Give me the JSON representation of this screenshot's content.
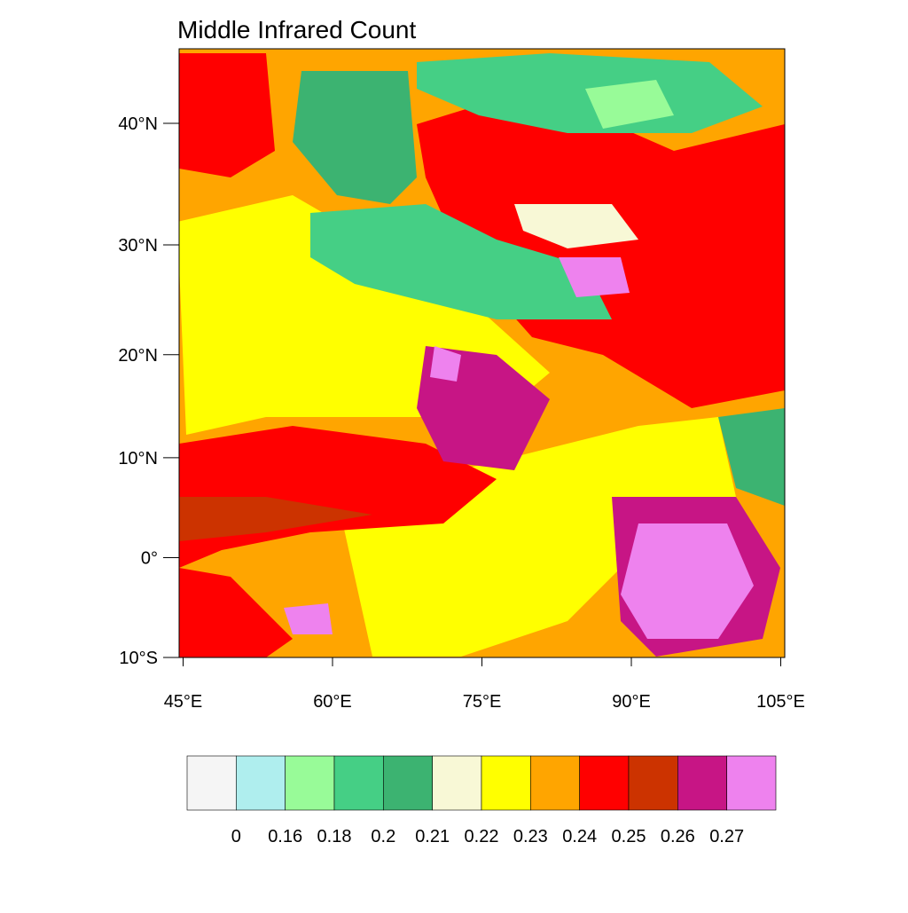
{
  "title": "Middle Infrared Count",
  "map": {
    "xlim": [
      44.6,
      105.4
    ],
    "ylim": [
      -10,
      45.5
    ],
    "xticks": [
      {
        "value": 45,
        "label": "45°E"
      },
      {
        "value": 60,
        "label": "60°E"
      },
      {
        "value": 75,
        "label": "75°E"
      },
      {
        "value": 90,
        "label": "90°E"
      },
      {
        "value": 105,
        "label": "105°E"
      }
    ],
    "yticks": [
      {
        "value": -10,
        "label": "10°S"
      },
      {
        "value": 0,
        "label": "0°"
      },
      {
        "value": 10,
        "label": "10°N"
      },
      {
        "value": 20,
        "label": "20°N"
      },
      {
        "value": 30,
        "label": "30°N"
      },
      {
        "value": 40,
        "label": "40°N"
      }
    ]
  },
  "colorbar": {
    "colors": [
      "#f5f5f5",
      "#afeeee",
      "#98fb98",
      "#45cf85",
      "#3cb371",
      "#f8f8d6",
      "#ffff00",
      "#ffa500",
      "#ff0000",
      "#cc3300",
      "#c71585",
      "#ee82ee"
    ],
    "levels": [
      0,
      0.16,
      0.18,
      0.2,
      0.21,
      0.22,
      0.23,
      0.24,
      0.25,
      0.26,
      0.27
    ]
  }
}
